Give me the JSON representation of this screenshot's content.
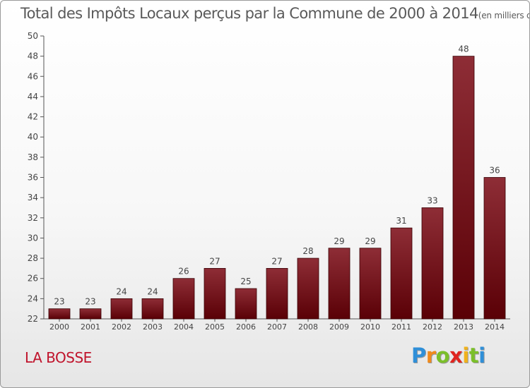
{
  "chart_data": {
    "type": "bar",
    "title": "Total des Impôts Locaux perçus par la Commune de 2000 à 2014",
    "unit_note": "(en milliers d'€)",
    "categories": [
      "2000",
      "2001",
      "2002",
      "2003",
      "2004",
      "2005",
      "2006",
      "2007",
      "2008",
      "2009",
      "2010",
      "2011",
      "2012",
      "2013",
      "2014"
    ],
    "values": [
      23,
      23,
      24,
      24,
      26,
      27,
      25,
      27,
      28,
      29,
      29,
      31,
      33,
      48,
      36
    ],
    "ylim": [
      22,
      50
    ],
    "yticks": [
      22,
      24,
      26,
      28,
      30,
      32,
      34,
      36,
      38,
      40,
      42,
      44,
      46,
      48,
      50
    ],
    "grid": false,
    "bar_color": "#7a1018",
    "bar_color_dark": "#5a0006",
    "bar_color_light": "#8e2d36"
  },
  "footer": {
    "commune": "LA BOSSE",
    "logo_letters": [
      "P",
      "r",
      "o",
      "x",
      "i",
      "t",
      "i"
    ],
    "logo_colors": [
      "#2f8fd8",
      "#f08a1c",
      "#7bbf2a",
      "#e0241f",
      "#f0b21c",
      "#7bbf2a",
      "#2f8fd8"
    ]
  }
}
